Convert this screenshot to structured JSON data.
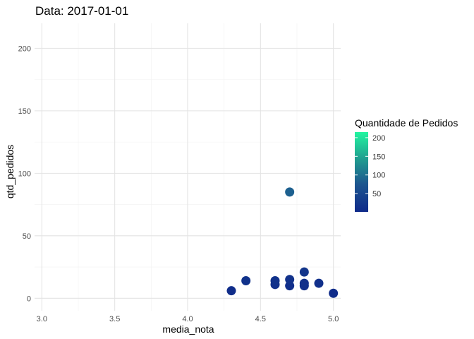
{
  "chart_data": {
    "type": "scatter",
    "title": "Data: 2017-01-01",
    "xlabel": "media_nota",
    "ylabel": "qtd_pedidos",
    "xlim": [
      2.95,
      5.05
    ],
    "ylim": [
      -10,
      220
    ],
    "x_ticks": [
      3.0,
      3.5,
      4.0,
      4.5,
      5.0
    ],
    "x_tick_labels": [
      "3.0",
      "3.5",
      "4.0",
      "4.5",
      "5.0"
    ],
    "y_ticks": [
      0,
      50,
      100,
      150,
      200
    ],
    "y_tick_labels": [
      "0",
      "50",
      "100",
      "150",
      "200"
    ],
    "grid": true,
    "points": [
      {
        "x": 4.3,
        "y": 6
      },
      {
        "x": 4.4,
        "y": 14
      },
      {
        "x": 4.6,
        "y": 11
      },
      {
        "x": 4.6,
        "y": 14
      },
      {
        "x": 4.7,
        "y": 10
      },
      {
        "x": 4.7,
        "y": 15
      },
      {
        "x": 4.7,
        "y": 85
      },
      {
        "x": 4.8,
        "y": 10
      },
      {
        "x": 4.8,
        "y": 12
      },
      {
        "x": 4.8,
        "y": 21
      },
      {
        "x": 4.9,
        "y": 12
      },
      {
        "x": 5.0,
        "y": 4
      }
    ],
    "color_scale": {
      "title": "Quantidade de Pedidos",
      "min": 1,
      "max": 215,
      "low_color": "#0f2a8a",
      "high_color": "#22f5a0",
      "ticks": [
        50,
        100,
        150,
        200
      ],
      "tick_labels": [
        "50",
        "100",
        "150",
        "200"
      ]
    },
    "legend_position": "right"
  }
}
